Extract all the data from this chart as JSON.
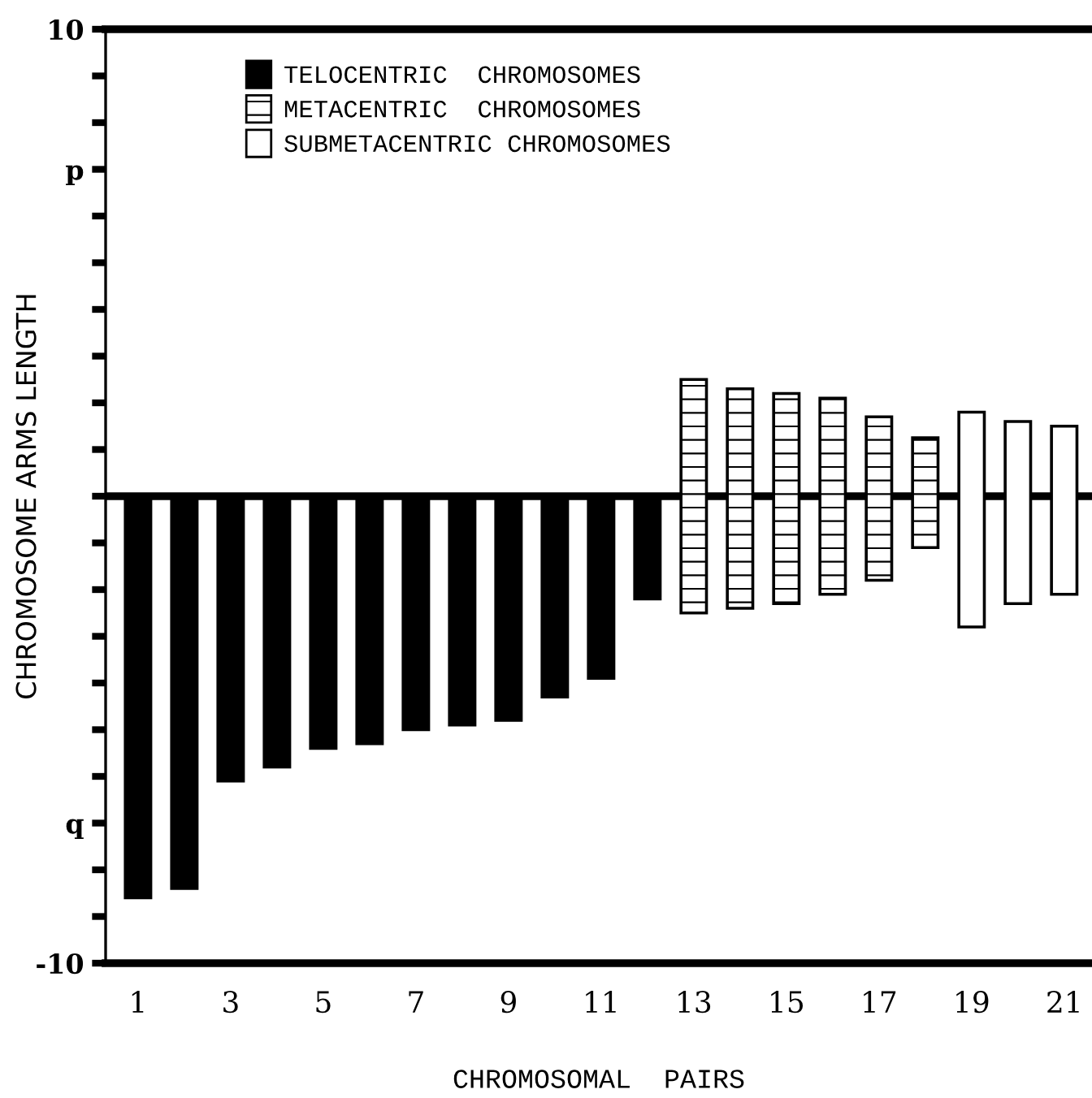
{
  "chart_data": {
    "type": "bar",
    "xlabel": "CHROMOSOMAL  PAIRS",
    "ylabel": "CHROMOSOME ARMS LENGTH",
    "categories": [
      "1",
      null,
      "3",
      null,
      "5",
      null,
      "7",
      null,
      "9",
      null,
      "11",
      null,
      "13",
      null,
      "15",
      null,
      "17",
      null,
      "19",
      null,
      "21"
    ],
    "series": [
      {
        "name": "TELOCENTRIC  CHROMOSOMES",
        "color": "#000000",
        "base": [
          0,
          0,
          0,
          0,
          0,
          0,
          0,
          0,
          0,
          0,
          0,
          0,
          null,
          null,
          null,
          null,
          null,
          null,
          null,
          null,
          null
        ],
        "values": [
          -8.6,
          -8.4,
          -6.1,
          -5.8,
          -5.4,
          -5.3,
          -5.0,
          -4.9,
          -4.8,
          -4.3,
          -3.9,
          -2.2,
          null,
          null,
          null,
          null,
          null,
          null,
          null,
          null,
          null
        ]
      },
      {
        "name": "METACENTRIC  CHROMOSOMES",
        "color": "#000000",
        "base": [
          null,
          null,
          null,
          null,
          null,
          null,
          null,
          null,
          null,
          null,
          null,
          null,
          -2.5,
          -2.4,
          -2.3,
          -2.1,
          -1.8,
          -1.1,
          null,
          null,
          null
        ],
        "values": [
          null,
          null,
          null,
          null,
          null,
          null,
          null,
          null,
          null,
          null,
          null,
          null,
          5.0,
          4.7,
          4.5,
          4.2,
          3.5,
          2.35,
          null,
          null,
          null
        ]
      },
      {
        "name": "SUBMETACENTRIC CHROMOSOMES",
        "color": "#ffffff",
        "base": [
          null,
          null,
          null,
          null,
          null,
          null,
          null,
          null,
          null,
          null,
          null,
          null,
          null,
          null,
          null,
          null,
          null,
          null,
          -2.8,
          -2.3,
          -2.1
        ],
        "values": [
          null,
          null,
          null,
          null,
          null,
          null,
          null,
          null,
          null,
          null,
          null,
          null,
          null,
          null,
          null,
          null,
          null,
          null,
          4.6,
          3.9,
          3.6
        ]
      }
    ],
    "ylim": [
      -10,
      10
    ],
    "yticks": [
      {
        "value": -10,
        "label": "-10"
      },
      {
        "value": -9,
        "label": null
      },
      {
        "value": -8,
        "label": null
      },
      {
        "value": -7,
        "label": "q"
      },
      {
        "value": -6,
        "label": null
      },
      {
        "value": -5,
        "label": null
      },
      {
        "value": -4,
        "label": null
      },
      {
        "value": -3,
        "label": null
      },
      {
        "value": -2,
        "label": null
      },
      {
        "value": -1,
        "label": null
      },
      {
        "value": 0,
        "label": null
      },
      {
        "value": 1,
        "label": null
      },
      {
        "value": 2,
        "label": null
      },
      {
        "value": 3,
        "label": null
      },
      {
        "value": 4,
        "label": null
      },
      {
        "value": 5,
        "label": null
      },
      {
        "value": 6,
        "label": null
      },
      {
        "value": 7,
        "label": "p"
      },
      {
        "value": 8,
        "label": null
      },
      {
        "value": 9,
        "label": null
      },
      {
        "value": 10,
        "label": "10"
      }
    ],
    "ref_lines": [
      {
        "axis": "y",
        "value": 0,
        "color": "#000000"
      }
    ],
    "grid": false,
    "legend": "top left"
  }
}
